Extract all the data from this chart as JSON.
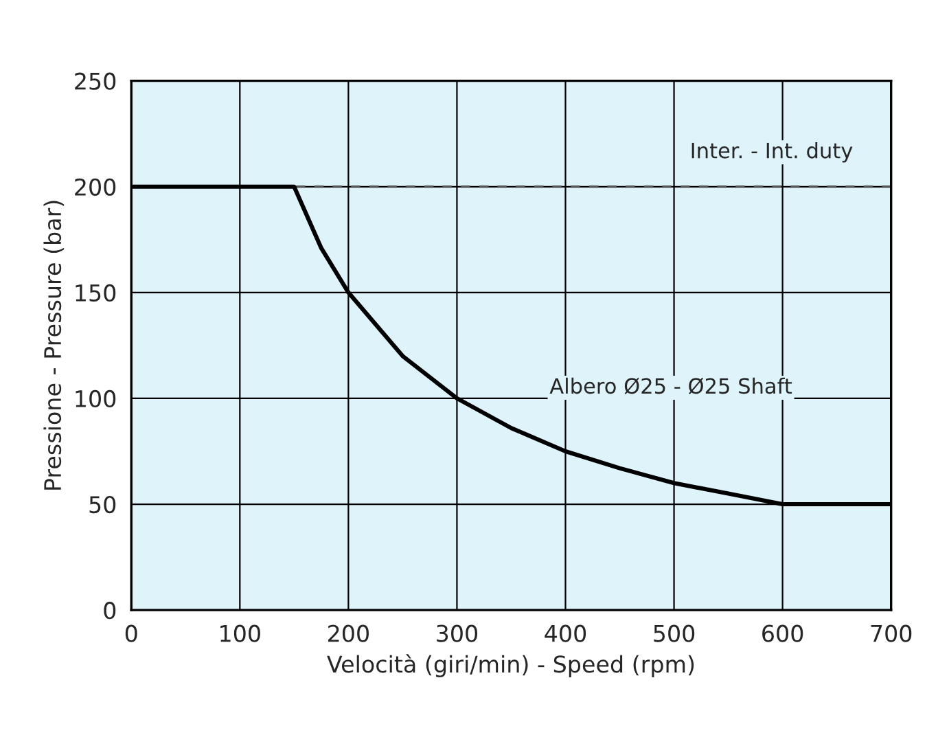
{
  "chart_data": {
    "type": "line",
    "xlabel": "Velocità (giri/min) - Speed (rpm)",
    "ylabel": "Pressione - Pressure (bar)",
    "x": [
      0,
      150,
      175,
      200,
      250,
      300,
      350,
      400,
      450,
      500,
      550,
      600,
      700
    ],
    "series": [
      {
        "color": "#000000",
        "values": [
          200,
          200,
          171,
          150,
          120,
          100,
          86,
          75,
          67,
          60,
          55,
          50,
          50
        ]
      }
    ],
    "xlim": [
      0,
      700
    ],
    "ylim": [
      0,
      250
    ],
    "xticks": [
      0,
      100,
      200,
      300,
      400,
      500,
      600,
      700
    ],
    "yticks": [
      0,
      50,
      100,
      150,
      200,
      250
    ],
    "grid": true,
    "marker": "none",
    "line_style": "solid",
    "ref_lines": [
      {
        "axis": "y",
        "value": 200,
        "label": "Inter. - Int. duty",
        "color": "#555555",
        "line_style": "dashed"
      }
    ],
    "annotations": [
      "Albero Ø25 - Ø25 Shaft"
    ]
  }
}
